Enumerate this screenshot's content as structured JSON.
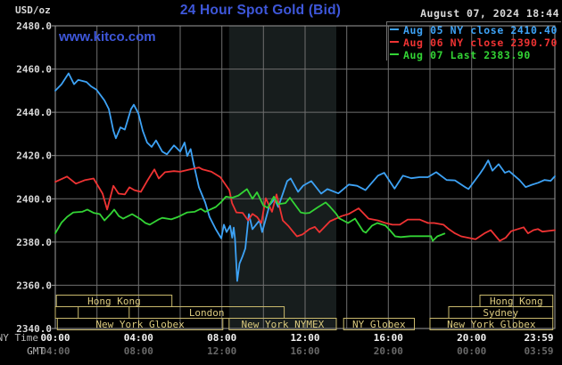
{
  "header": {
    "units_label": "USD/oz",
    "title": "24 Hour Spot Gold (Bid)",
    "datetime": "August 07, 2024 18:44",
    "watermark": "www.kitco.com"
  },
  "legend": [
    {
      "label": "Aug 05 NY close 2410.40",
      "color": "#3da2f5"
    },
    {
      "label": "Aug 06 NY close 2390.70",
      "color": "#ef3333"
    },
    {
      "label": "Aug 07 Last 2383.90",
      "color": "#33d435"
    }
  ],
  "axis_captions": {
    "ny_time": "NY Time",
    "gmt": "GMT"
  },
  "colors": {
    "background": "#000000",
    "grid": "#6f6f6f",
    "frame": "#9b9b9b",
    "session_box": "#c9b96d",
    "session_text": "#dbca7e",
    "tick_text_ny": "#f2f2f2",
    "tick_text_gmt": "#686868",
    "caption_text": "#b8b8b8",
    "y_label_text": "#d9d9d9",
    "highlight_band": "#171d1d",
    "accent_blue": "#3e57da"
  },
  "chart_data": {
    "type": "line",
    "title": "24 Hour Spot Gold (Bid)",
    "ylabel": "USD/oz",
    "y_axis": {
      "min": 2340,
      "max": 2480,
      "tick_step": 20
    },
    "x_axis": {
      "range_hours": [
        0,
        24
      ],
      "gridline_every_hours": 2,
      "ticks": [
        {
          "hour": 0,
          "ny": "00:00",
          "gmt": "04:00"
        },
        {
          "hour": 4,
          "ny": "04:00",
          "gmt": "08:00"
        },
        {
          "hour": 8,
          "ny": "08:00",
          "gmt": "12:00"
        },
        {
          "hour": 12,
          "ny": "12:00",
          "gmt": "16:00"
        },
        {
          "hour": 16,
          "ny": "16:00",
          "gmt": "20:00"
        },
        {
          "hour": 20,
          "ny": "20:00",
          "gmt": "00:00"
        },
        {
          "hour": 23.983,
          "ny": "23:59",
          "gmt": "03:59"
        }
      ]
    },
    "highlight_band": {
      "from_hour": 8.35,
      "to_hour": 13.5,
      "meaning": "New York NYMEX session"
    },
    "series": [
      {
        "name": "Aug 05",
        "legend": "Aug 05 NY close 2410.40",
        "color": "#3da2f5",
        "points": [
          [
            0,
            2450
          ],
          [
            0.3,
            2453
          ],
          [
            0.64,
            2458
          ],
          [
            0.9,
            2453
          ],
          [
            1.1,
            2455
          ],
          [
            1.5,
            2454
          ],
          [
            1.72,
            2452
          ],
          [
            1.97,
            2450.5
          ],
          [
            2.36,
            2445.5
          ],
          [
            2.57,
            2441.5
          ],
          [
            2.79,
            2431.5
          ],
          [
            2.91,
            2428
          ],
          [
            3.13,
            2433
          ],
          [
            3.34,
            2432
          ],
          [
            3.64,
            2441.5
          ],
          [
            3.77,
            2443.5
          ],
          [
            3.99,
            2439.5
          ],
          [
            4.2,
            2431.5
          ],
          [
            4.41,
            2426
          ],
          [
            4.63,
            2424
          ],
          [
            4.84,
            2427
          ],
          [
            5.14,
            2421.8
          ],
          [
            5.36,
            2420.6
          ],
          [
            5.7,
            2424.7
          ],
          [
            6.0,
            2421.8
          ],
          [
            6.21,
            2426
          ],
          [
            6.34,
            2419.8
          ],
          [
            6.5,
            2423
          ],
          [
            6.64,
            2416.5
          ],
          [
            6.9,
            2405.3
          ],
          [
            7.2,
            2398.3
          ],
          [
            7.41,
            2391.6
          ],
          [
            7.71,
            2385.9
          ],
          [
            7.97,
            2381.7
          ],
          [
            8.1,
            2388
          ],
          [
            8.23,
            2384.6
          ],
          [
            8.4,
            2387.5
          ],
          [
            8.5,
            2382
          ],
          [
            8.57,
            2386.7
          ],
          [
            8.63,
            2381.7
          ],
          [
            8.74,
            2362
          ],
          [
            8.85,
            2370
          ],
          [
            9.0,
            2373.5
          ],
          [
            9.13,
            2377
          ],
          [
            9.3,
            2392.9
          ],
          [
            9.47,
            2385.9
          ],
          [
            9.81,
            2390
          ],
          [
            9.94,
            2384.6
          ],
          [
            10.29,
            2397
          ],
          [
            10.54,
            2399.9
          ],
          [
            10.71,
            2396.2
          ],
          [
            11.14,
            2408.2
          ],
          [
            11.31,
            2409.4
          ],
          [
            11.66,
            2403.2
          ],
          [
            11.91,
            2406.1
          ],
          [
            12.3,
            2408.2
          ],
          [
            12.77,
            2402.4
          ],
          [
            13.07,
            2404.5
          ],
          [
            13.6,
            2402.5
          ],
          [
            14.1,
            2406.6
          ],
          [
            14.5,
            2406
          ],
          [
            14.9,
            2404
          ],
          [
            15.5,
            2410.7
          ],
          [
            15.8,
            2412
          ],
          [
            16.3,
            2404.7
          ],
          [
            16.7,
            2410.7
          ],
          [
            17.1,
            2409.5
          ],
          [
            17.5,
            2410
          ],
          [
            17.9,
            2410
          ],
          [
            18.3,
            2412.3
          ],
          [
            18.8,
            2408.7
          ],
          [
            19.2,
            2408.5
          ],
          [
            19.7,
            2405.3
          ],
          [
            19.85,
            2404.5
          ],
          [
            20.4,
            2411.6
          ],
          [
            20.6,
            2414.5
          ],
          [
            20.8,
            2417.8
          ],
          [
            21.0,
            2413
          ],
          [
            21.3,
            2416
          ],
          [
            21.6,
            2412
          ],
          [
            21.8,
            2412.8
          ],
          [
            22.3,
            2408.7
          ],
          [
            22.6,
            2405.4
          ],
          [
            22.9,
            2406.5
          ],
          [
            23.2,
            2407.4
          ],
          [
            23.5,
            2408.7
          ],
          [
            23.8,
            2408.3
          ],
          [
            24,
            2410.4
          ]
        ]
      },
      {
        "name": "Aug 06",
        "legend": "Aug 06 NY close 2390.70",
        "color": "#ef3333",
        "points": [
          [
            0,
            2407.8
          ],
          [
            0.56,
            2410.3
          ],
          [
            0.99,
            2407
          ],
          [
            1.41,
            2408.6
          ],
          [
            1.84,
            2409.4
          ],
          [
            2.27,
            2402.4
          ],
          [
            2.49,
            2395
          ],
          [
            2.79,
            2406
          ],
          [
            3.04,
            2402.4
          ],
          [
            3.34,
            2402
          ],
          [
            3.56,
            2405.3
          ],
          [
            3.8,
            2404
          ],
          [
            4.11,
            2403.2
          ],
          [
            4.41,
            2408.2
          ],
          [
            4.63,
            2411.6
          ],
          [
            4.76,
            2413.6
          ],
          [
            4.97,
            2409.4
          ],
          [
            5.27,
            2412.3
          ],
          [
            5.7,
            2412.8
          ],
          [
            6.0,
            2412.5
          ],
          [
            6.43,
            2413.5
          ],
          [
            6.9,
            2414.5
          ],
          [
            7.07,
            2413.6
          ],
          [
            7.5,
            2412.5
          ],
          [
            7.93,
            2410
          ],
          [
            8.36,
            2404
          ],
          [
            8.49,
            2398
          ],
          [
            8.7,
            2393.7
          ],
          [
            9.0,
            2393.5
          ],
          [
            9.26,
            2390
          ],
          [
            9.47,
            2393
          ],
          [
            9.7,
            2391.5
          ],
          [
            9.9,
            2388.8
          ],
          [
            10.11,
            2400.3
          ],
          [
            10.41,
            2394
          ],
          [
            10.63,
            2402
          ],
          [
            10.93,
            2390
          ],
          [
            11.19,
            2387.5
          ],
          [
            11.4,
            2385
          ],
          [
            11.61,
            2382.6
          ],
          [
            11.87,
            2383.5
          ],
          [
            12.21,
            2386
          ],
          [
            12.47,
            2387
          ],
          [
            12.69,
            2384.5
          ],
          [
            13.2,
            2389.6
          ],
          [
            13.76,
            2392
          ],
          [
            14.1,
            2393
          ],
          [
            14.57,
            2395.6
          ],
          [
            15.05,
            2390.8
          ],
          [
            15.5,
            2390
          ],
          [
            15.86,
            2388.8
          ],
          [
            16.2,
            2388
          ],
          [
            16.55,
            2388
          ],
          [
            16.93,
            2390.4
          ],
          [
            17.5,
            2390.4
          ],
          [
            17.91,
            2388.8
          ],
          [
            18.2,
            2388.8
          ],
          [
            18.65,
            2388
          ],
          [
            18.9,
            2386
          ],
          [
            19.2,
            2384
          ],
          [
            19.5,
            2382.6
          ],
          [
            20.19,
            2381.3
          ],
          [
            20.62,
            2384
          ],
          [
            20.92,
            2385.5
          ],
          [
            21.35,
            2380.5
          ],
          [
            21.64,
            2382
          ],
          [
            21.9,
            2385
          ],
          [
            22.5,
            2386.8
          ],
          [
            22.71,
            2384
          ],
          [
            22.97,
            2385.5
          ],
          [
            23.19,
            2386
          ],
          [
            23.4,
            2384.8
          ],
          [
            24,
            2385.5
          ]
        ]
      },
      {
        "name": "Aug 07",
        "legend": "Aug 07 Last 2383.90",
        "color": "#33d435",
        "points": [
          [
            0,
            2384
          ],
          [
            0.3,
            2389
          ],
          [
            0.56,
            2391.6
          ],
          [
            0.86,
            2393.7
          ],
          [
            1.29,
            2394
          ],
          [
            1.54,
            2395
          ],
          [
            1.84,
            2393.5
          ],
          [
            2.14,
            2392.9
          ],
          [
            2.36,
            2390
          ],
          [
            2.66,
            2393
          ],
          [
            2.83,
            2395
          ],
          [
            3.05,
            2392
          ],
          [
            3.26,
            2390.8
          ],
          [
            3.69,
            2392.9
          ],
          [
            4.11,
            2390.5
          ],
          [
            4.33,
            2388.8
          ],
          [
            4.54,
            2388
          ],
          [
            4.97,
            2390.5
          ],
          [
            5.14,
            2391.2
          ],
          [
            5.57,
            2390.5
          ],
          [
            5.87,
            2391.5
          ],
          [
            6.34,
            2393.7
          ],
          [
            6.69,
            2394
          ],
          [
            6.99,
            2395.4
          ],
          [
            7.2,
            2394
          ],
          [
            7.71,
            2396.2
          ],
          [
            7.97,
            2398.5
          ],
          [
            8.2,
            2401
          ],
          [
            8.5,
            2400.5
          ],
          [
            8.8,
            2401.5
          ],
          [
            9.21,
            2404.5
          ],
          [
            9.47,
            2400
          ],
          [
            9.69,
            2403
          ],
          [
            9.99,
            2397
          ],
          [
            10.2,
            2395.8
          ],
          [
            10.5,
            2401
          ],
          [
            10.7,
            2397.5
          ],
          [
            11.06,
            2398
          ],
          [
            11.27,
            2400.5
          ],
          [
            11.79,
            2393.7
          ],
          [
            12.0,
            2393.3
          ],
          [
            12.21,
            2393.5
          ],
          [
            12.6,
            2396
          ],
          [
            12.99,
            2398.3
          ],
          [
            13.2,
            2396.3
          ],
          [
            13.5,
            2393
          ],
          [
            13.63,
            2391
          ],
          [
            14.06,
            2388.8
          ],
          [
            14.4,
            2390.8
          ],
          [
            14.79,
            2385
          ],
          [
            14.92,
            2384.3
          ],
          [
            15.22,
            2387.6
          ],
          [
            15.47,
            2388.8
          ],
          [
            15.86,
            2387.6
          ],
          [
            16.07,
            2385.5
          ],
          [
            16.33,
            2382.6
          ],
          [
            16.6,
            2382.3
          ],
          [
            17.06,
            2382.7
          ],
          [
            17.6,
            2382.7
          ],
          [
            18.05,
            2382.7
          ],
          [
            18.13,
            2380.5
          ],
          [
            18.35,
            2382.6
          ],
          [
            18.7,
            2383.9
          ]
        ]
      }
    ],
    "sessions": [
      [
        {
          "label": "Hong Kong",
          "from_hour": 0.05,
          "to_hour": 5.6
        },
        {
          "label": "Hong Kong",
          "from_hour": 20.4,
          "to_hour": 23.9
        }
      ],
      [
        {
          "label": "",
          "from_hour": 0,
          "to_hour": 1.1
        },
        {
          "label": "London",
          "from_hour": 3.55,
          "to_hour": 11.0
        },
        {
          "label": "Sydney",
          "from_hour": 18.9,
          "to_hour": 23.9
        }
      ],
      [
        {
          "label": "New York Globex",
          "from_hour": 0.1,
          "to_hour": 8.05
        },
        {
          "label": "New York NYMEX",
          "from_hour": 8.35,
          "to_hour": 13.5
        },
        {
          "label": "NY Globex",
          "from_hour": 13.85,
          "to_hour": 17.25
        },
        {
          "label": "New York Globex",
          "from_hour": 18.0,
          "to_hour": 23.9
        }
      ]
    ]
  }
}
